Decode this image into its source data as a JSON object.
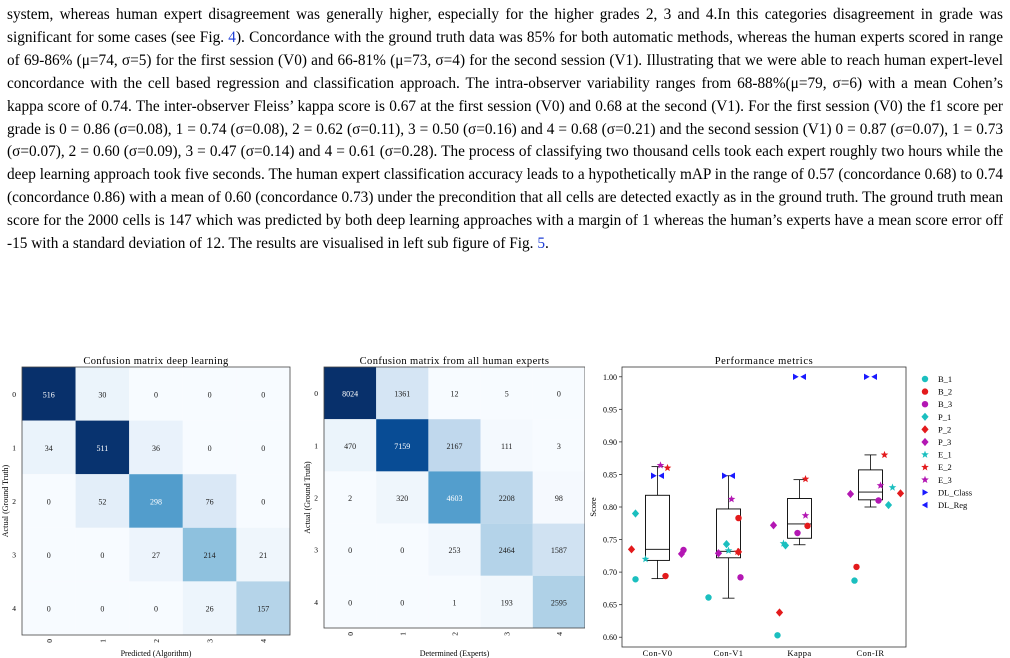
{
  "paragraph": {
    "segments": [
      {
        "text": "system, whereas human expert disagreement was generally higher, especially for the higher grades 2, 3 and 4.In this categories disagreement in grade was significant for some cases (see Fig. "
      },
      {
        "text": "4",
        "ref": true
      },
      {
        "text": "). Concordance with the ground truth data was 85% for both automatic methods, whereas the human experts scored in range of 69-86% (μ=74, σ=5) for the first session (V0) and 66-81% (μ=73, σ=4) for the second session (V1). Illustrating that we were able to reach human expert-level concordance with the cell based regression and classification approach. The intra-observer variability ranges from 68-88%(μ=79, σ=6) with a mean Cohen’s kappa score of 0.74. The inter-observer Fleiss’ kappa score is 0.67 at the first session (V0) and 0.68 at the second (V1). For the first session (V0) the f1 score per grade is 0 = 0.86 (σ=0.08), 1 = 0.74 (σ=0.08), 2 = 0.62 (σ=0.11), 3 = 0.50 (σ=0.16) and 4 = 0.68 (σ=0.21) and the second session (V1) 0 = 0.87 (σ=0.07), 1 = 0.73 (σ=0.07), 2 = 0.60 (σ=0.09), 3 = 0.47 (σ=0.14) and 4 = 0.61 (σ=0.28). The process of classifying two thousand cells took each expert roughly two hours while the deep learning approach took five seconds. The human expert classification accuracy leads to a hypothetically mAP in the range of 0.57 (concordance 0.68) to 0.74 (concordance 0.86) with a mean of 0.60 (concordance 0.73) under the precondition that all cells are detected exactly as in the ground truth. The ground truth mean score for the 2000 cells is 147 which was predicted by both deep learning approaches with a margin of 1 whereas the human’s experts have a mean score error off -15 with a standard deviation of 12. The results are visualised in left sub figure of Fig. "
      },
      {
        "text": "5",
        "ref": true
      },
      {
        "text": "."
      }
    ],
    "ref_color": "#1f3fd6"
  },
  "chart_data": [
    {
      "type": "heatmap",
      "title": "Confusion matrix deep learning",
      "xlabel": "Predicted (Algorithm)",
      "ylabel": "Actual (Ground Truth)",
      "row_labels": [
        "0",
        "1",
        "2",
        "3",
        "4"
      ],
      "col_labels": [
        "0",
        "1",
        "2",
        "3",
        "4"
      ],
      "values": [
        [
          516,
          30,
          0,
          0,
          0
        ],
        [
          34,
          511,
          36,
          0,
          0
        ],
        [
          0,
          52,
          298,
          76,
          0
        ],
        [
          0,
          0,
          27,
          214,
          21
        ],
        [
          0,
          0,
          0,
          26,
          157
        ]
      ],
      "colormap": "Blues"
    },
    {
      "type": "heatmap",
      "title": "Confusion matrix from all human experts",
      "xlabel": "Determined (Experts)",
      "ylabel": "Actual (Ground Truth)",
      "row_labels": [
        "0",
        "1",
        "2",
        "3",
        "4"
      ],
      "col_labels": [
        "0",
        "1",
        "2",
        "3",
        "4"
      ],
      "values": [
        [
          8024,
          1361,
          12,
          5,
          0
        ],
        [
          470,
          7159,
          2167,
          111,
          3
        ],
        [
          2,
          320,
          4603,
          2208,
          98
        ],
        [
          0,
          0,
          253,
          2464,
          1587
        ],
        [
          0,
          0,
          1,
          193,
          2595
        ]
      ],
      "colormap": "Blues"
    },
    {
      "type": "scatter",
      "title": "Performance metrics",
      "ylabel": "Score",
      "xlabel": "",
      "categories": [
        "Con-V0",
        "Con-V1",
        "Kappa",
        "Con-IR"
      ],
      "ylim": [
        0.585,
        1.015
      ],
      "yticks": [
        "0.60",
        "0.65",
        "0.70",
        "0.75",
        "0.80",
        "0.85",
        "0.90",
        "0.95",
        "1.00"
      ],
      "legend_position": "right",
      "boxes": [
        {
          "q1": 0.718,
          "median": 0.735,
          "q3": 0.818,
          "whisker_low": 0.69,
          "whisker_high": 0.862
        },
        {
          "q1": 0.722,
          "median": 0.732,
          "q3": 0.797,
          "whisker_low": 0.66,
          "whisker_high": 0.848
        },
        {
          "q1": 0.752,
          "median": 0.774,
          "q3": 0.813,
          "whisker_low": 0.742,
          "whisker_high": 0.842
        },
        {
          "q1": 0.811,
          "median": 0.823,
          "q3": 0.857,
          "whisker_low": 0.8,
          "whisker_high": 0.88
        }
      ],
      "series": [
        {
          "name": "B_1",
          "marker": "circle",
          "color": "#1bbfbf",
          "values": [
            0.689,
            0.661,
            0.603,
            0.687
          ]
        },
        {
          "name": "B_2",
          "marker": "circle",
          "color": "#e31a1c",
          "values": [
            0.694,
            0.783,
            0.771,
            0.708
          ]
        },
        {
          "name": "B_3",
          "marker": "circle",
          "color": "#b317b3",
          "values": [
            0.734,
            0.692,
            0.76,
            0.81
          ]
        },
        {
          "name": "P_1",
          "marker": "diamond",
          "color": "#1bbfbf",
          "values": [
            0.79,
            0.743,
            0.741,
            0.803
          ]
        },
        {
          "name": "P_2",
          "marker": "diamond",
          "color": "#e31a1c",
          "values": [
            0.735,
            0.731,
            0.638,
            0.821
          ]
        },
        {
          "name": "P_3",
          "marker": "diamond",
          "color": "#b317b3",
          "values": [
            0.728,
            0.729,
            0.772,
            0.82
          ]
        },
        {
          "name": "E_1",
          "marker": "star",
          "color": "#1bbfbf",
          "values": [
            0.72,
            0.733,
            0.744,
            0.83
          ]
        },
        {
          "name": "E_2",
          "marker": "star",
          "color": "#e31a1c",
          "values": [
            0.86,
            0.731,
            0.843,
            0.88
          ]
        },
        {
          "name": "E_3",
          "marker": "star",
          "color": "#b317b3",
          "values": [
            0.864,
            0.812,
            0.787,
            0.833
          ]
        },
        {
          "name": "DL_Class",
          "marker": "triangle-right",
          "color": "#1a1aff",
          "values": [
            0.848,
            0.848,
            1.0,
            1.0
          ]
        },
        {
          "name": "DL_Reg",
          "marker": "triangle-left",
          "color": "#1a1aff",
          "values": [
            0.848,
            0.848,
            1.0,
            1.0
          ]
        }
      ]
    }
  ]
}
